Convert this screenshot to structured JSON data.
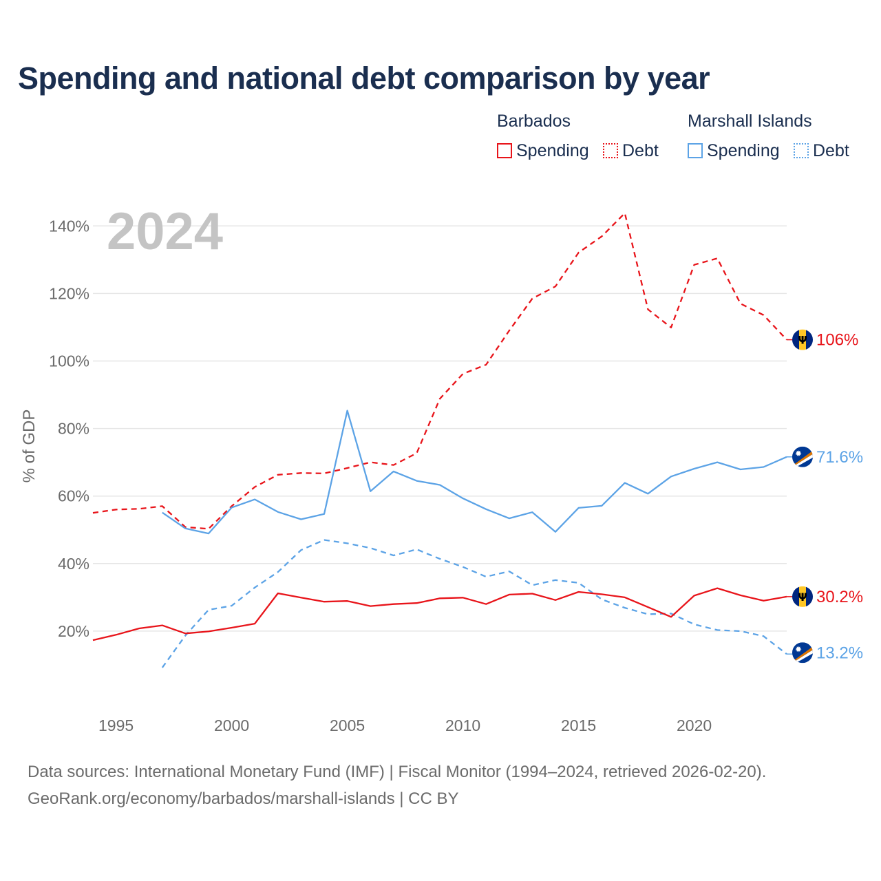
{
  "title": "Spending and national debt comparison by year",
  "legend": {
    "groups": [
      {
        "name": "Barbados",
        "items": [
          "Spending",
          "Debt"
        ]
      },
      {
        "name": "Marshall Islands",
        "items": [
          "Spending",
          "Debt"
        ]
      }
    ]
  },
  "year_label": "2024",
  "footer": {
    "line1": "Data sources: International Monetary Fund (IMF) | Fiscal Monitor (1994–2024, retrieved 2026-02-20).",
    "line2": "GeoRank.org/economy/barbados/marshall-islands | CC BY"
  },
  "colors": {
    "barbados": "#e8141a",
    "marshall_islands": "#5ca3e6",
    "title": "#1a2e4f",
    "axis_text": "#6b6b6b",
    "grid": "#e6e6e6",
    "year_watermark": "#c4c4c4"
  },
  "chart_data": {
    "type": "line",
    "title": "Spending and national debt comparison by year",
    "xlabel": "",
    "ylabel": "% of GDP",
    "xlim": [
      1994,
      2024
    ],
    "ylim": [
      0,
      145
    ],
    "x_ticks": [
      1995,
      2000,
      2005,
      2010,
      2015,
      2020
    ],
    "y_ticks": [
      20,
      40,
      60,
      80,
      100,
      120,
      140
    ],
    "y_tick_labels": [
      "20%",
      "40%",
      "60%",
      "80%",
      "100%",
      "120%",
      "140%"
    ],
    "series": [
      {
        "name": "Barbados Debt",
        "country": "Barbados",
        "metric": "Debt",
        "style": "dashed",
        "color": "#e8141a",
        "x": [
          1994,
          1995,
          1996,
          1997,
          1998,
          1999,
          2000,
          2001,
          2002,
          2003,
          2004,
          2005,
          2006,
          2007,
          2008,
          2009,
          2010,
          2011,
          2012,
          2013,
          2014,
          2015,
          2016,
          2017,
          2018,
          2019,
          2020,
          2021,
          2022,
          2023,
          2024
        ],
        "values": [
          55,
          56,
          56.2,
          57,
          50.8,
          50.3,
          57,
          62.7,
          66.3,
          66.8,
          66.7,
          68.3,
          70,
          69.2,
          72.7,
          88.8,
          96.2,
          98.9,
          109,
          118.5,
          122.1,
          132.1,
          136.9,
          143.8,
          115.3,
          109.9,
          128.5,
          130.4,
          117,
          113.6,
          106.3
        ],
        "end_label": "106%"
      },
      {
        "name": "Marshall Islands Spending",
        "country": "Marshall Islands",
        "metric": "Spending",
        "style": "solid",
        "color": "#5ca3e6",
        "x": [
          1997,
          1998,
          1999,
          2000,
          2001,
          2002,
          2003,
          2004,
          2005,
          2006,
          2007,
          2008,
          2009,
          2010,
          2011,
          2012,
          2013,
          2014,
          2015,
          2016,
          2017,
          2018,
          2019,
          2020,
          2021,
          2022,
          2023,
          2024
        ],
        "values": [
          55.1,
          50.4,
          48.9,
          56.6,
          59,
          55.3,
          53.1,
          54.7,
          85.3,
          61.4,
          67.3,
          64.5,
          63.3,
          59.3,
          56.1,
          53.4,
          55.2,
          49.4,
          56.5,
          57.1,
          63.9,
          60.7,
          65.8,
          68.1,
          70,
          67.9,
          68.6,
          71.6
        ],
        "end_label": "71.6%"
      },
      {
        "name": "Marshall Islands Debt",
        "country": "Marshall Islands",
        "metric": "Debt",
        "style": "dashed",
        "color": "#5ca3e6",
        "x": [
          1997,
          1998,
          1999,
          2000,
          2001,
          2002,
          2003,
          2004,
          2005,
          2006,
          2007,
          2008,
          2009,
          2010,
          2011,
          2012,
          2013,
          2014,
          2015,
          2016,
          2017,
          2018,
          2019,
          2020,
          2021,
          2022,
          2023,
          2024
        ],
        "values": [
          9.2,
          18.7,
          26.3,
          27.5,
          32.9,
          37.5,
          44,
          47,
          46,
          44.6,
          42.4,
          44.2,
          41.4,
          39,
          36.1,
          37.7,
          33.6,
          35.1,
          34.3,
          29.4,
          26.9,
          25,
          25.2,
          22,
          20.3,
          20,
          18.5,
          13.2
        ],
        "end_label": "13.2%"
      },
      {
        "name": "Barbados Spending",
        "country": "Barbados",
        "metric": "Spending",
        "style": "solid",
        "color": "#e8141a",
        "x": [
          1994,
          1995,
          1996,
          1997,
          1998,
          1999,
          2000,
          2001,
          2002,
          2003,
          2004,
          2005,
          2006,
          2007,
          2008,
          2009,
          2010,
          2011,
          2012,
          2013,
          2014,
          2015,
          2016,
          2017,
          2018,
          2019,
          2020,
          2021,
          2022,
          2023,
          2024
        ],
        "values": [
          17.3,
          18.9,
          20.8,
          21.7,
          19.3,
          19.9,
          21,
          22.2,
          31.2,
          29.9,
          28.7,
          28.9,
          27.4,
          28,
          28.3,
          29.7,
          29.9,
          28,
          30.8,
          31.1,
          29.2,
          31.6,
          30.9,
          30,
          27.1,
          24.2,
          30.5,
          32.7,
          30.6,
          29,
          30.2
        ],
        "end_label": "30.2%"
      }
    ]
  }
}
